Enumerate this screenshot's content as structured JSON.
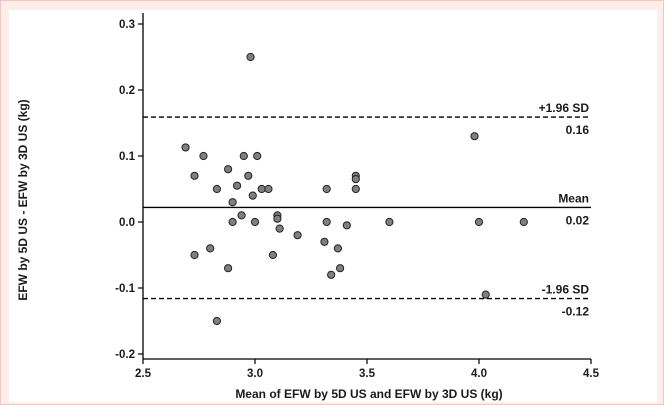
{
  "chart_data": {
    "type": "scatter",
    "title": "",
    "xlabel": "Mean of EFW by 5D US and EFW by 3D US (kg)",
    "ylabel": "EFW by 5D US - EFW by 3D US (kg)",
    "xlim": [
      2.5,
      4.5
    ],
    "ylim": [
      -0.2,
      0.3
    ],
    "x_ticks": [
      2.5,
      3.0,
      3.5,
      4.0,
      4.5
    ],
    "x_tick_labels": [
      "2.5",
      "3.0",
      "3.5",
      "4.0",
      "4.5"
    ],
    "y_ticks": [
      -0.2,
      -0.1,
      0.0,
      0.1,
      0.2,
      0.3
    ],
    "y_tick_labels": [
      "-0.2",
      "-0.1",
      "0.0",
      "0.1",
      "0.2",
      "0.3"
    ],
    "grid": false,
    "marker_color": "#7f7f7f",
    "reference_lines": [
      {
        "name": "+1.96 SD",
        "value_label": "0.16",
        "y": 0.159,
        "style": "dashed"
      },
      {
        "name": "Mean",
        "value_label": "0.02",
        "y": 0.022,
        "style": "solid"
      },
      {
        "name": "-1.96 SD",
        "value_label": "-0.12",
        "y": -0.116,
        "style": "dashed"
      }
    ],
    "points": [
      {
        "x": 2.98,
        "y": 0.25
      },
      {
        "x": 2.69,
        "y": 0.113
      },
      {
        "x": 2.73,
        "y": 0.07
      },
      {
        "x": 2.77,
        "y": 0.1
      },
      {
        "x": 2.83,
        "y": 0.05
      },
      {
        "x": 2.88,
        "y": 0.08
      },
      {
        "x": 2.9,
        "y": 0.03
      },
      {
        "x": 2.92,
        "y": 0.055
      },
      {
        "x": 2.95,
        "y": 0.1
      },
      {
        "x": 2.97,
        "y": 0.07
      },
      {
        "x": 2.99,
        "y": 0.04
      },
      {
        "x": 3.01,
        "y": 0.1
      },
      {
        "x": 3.03,
        "y": 0.05
      },
      {
        "x": 3.06,
        "y": 0.05
      },
      {
        "x": 2.94,
        "y": 0.01
      },
      {
        "x": 2.9,
        "y": 0.0
      },
      {
        "x": 3.0,
        "y": 0.0
      },
      {
        "x": 3.1,
        "y": 0.01
      },
      {
        "x": 3.1,
        "y": 0.005
      },
      {
        "x": 3.11,
        "y": -0.01
      },
      {
        "x": 2.73,
        "y": -0.05
      },
      {
        "x": 2.8,
        "y": -0.04
      },
      {
        "x": 2.88,
        "y": -0.07
      },
      {
        "x": 3.08,
        "y": -0.05
      },
      {
        "x": 3.19,
        "y": -0.02
      },
      {
        "x": 3.32,
        "y": 0.05
      },
      {
        "x": 3.32,
        "y": 0.0
      },
      {
        "x": 3.31,
        "y": -0.03
      },
      {
        "x": 3.34,
        "y": -0.08
      },
      {
        "x": 3.37,
        "y": -0.04
      },
      {
        "x": 3.38,
        "y": -0.07
      },
      {
        "x": 3.41,
        "y": -0.005
      },
      {
        "x": 3.45,
        "y": 0.07
      },
      {
        "x": 3.45,
        "y": 0.065
      },
      {
        "x": 3.45,
        "y": 0.05
      },
      {
        "x": 3.6,
        "y": 0.0
      },
      {
        "x": 3.98,
        "y": 0.13
      },
      {
        "x": 4.0,
        "y": 0.0
      },
      {
        "x": 4.2,
        "y": 0.0
      },
      {
        "x": 4.03,
        "y": -0.11
      },
      {
        "x": 2.83,
        "y": -0.15
      }
    ]
  }
}
